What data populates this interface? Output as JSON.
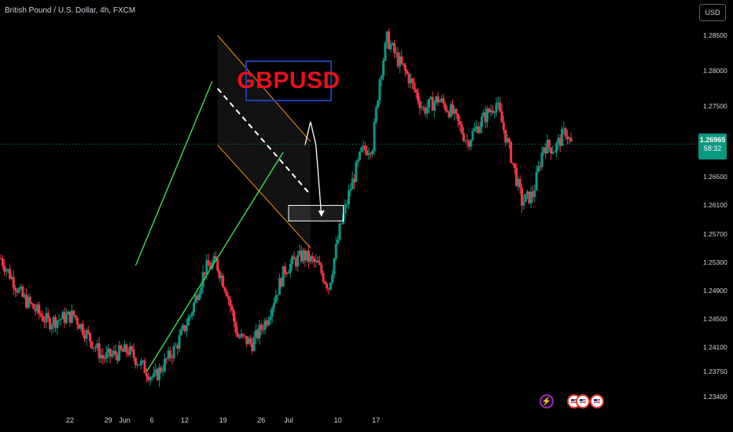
{
  "header": {
    "title": "British Pound / U.S. Dollar, 4h, FXCM",
    "currency": "USD"
  },
  "annotation": {
    "symbol_tag": "GBPUSD"
  },
  "price_badge": {
    "price": "1.26965",
    "countdown": "58:32"
  },
  "colors": {
    "up": "#089981",
    "down": "#f23645",
    "channel_up": "#39d353",
    "channel_down": "#f7931a",
    "tag_border": "#1e3fa8",
    "tag_text": "#e8101b",
    "event_icon": "#9c27b0",
    "flag_ring": "#e53935"
  },
  "events": {
    "icons": [
      "lightning-icon",
      "us-flag-icon",
      "us-flag-icon",
      "us-flag-icon"
    ]
  },
  "chart_data": {
    "type": "candlestick",
    "title": "British Pound / U.S. Dollar, 4h, FXCM",
    "grid": false,
    "yaxis": {
      "ticks": [
        "1.28500",
        "1.28000",
        "1.27500",
        "1.26500",
        "1.26100",
        "1.25700",
        "1.25300",
        "1.24900",
        "1.24500",
        "1.24100",
        "1.23750",
        "1.23400"
      ],
      "range": [
        1.2325,
        1.289
      ]
    },
    "xaxis": {
      "ticks": [
        "22",
        "29",
        "Jun",
        "6",
        "12",
        "19",
        "26",
        "Jul",
        "10",
        "17"
      ]
    },
    "current_price": 1.26965,
    "anchors": [
      {
        "t": 0,
        "p": 1.2535
      },
      {
        "t": 12,
        "p": 1.248
      },
      {
        "t": 26,
        "p": 1.2445
      },
      {
        "t": 40,
        "p": 1.2455
      },
      {
        "t": 56,
        "p": 1.2395
      },
      {
        "t": 70,
        "p": 1.2405
      },
      {
        "t": 84,
        "p": 1.2365
      },
      {
        "t": 96,
        "p": 1.241
      },
      {
        "t": 104,
        "p": 1.2455
      },
      {
        "t": 112,
        "p": 1.252
      },
      {
        "t": 118,
        "p": 1.253
      },
      {
        "t": 124,
        "p": 1.249
      },
      {
        "t": 130,
        "p": 1.2425
      },
      {
        "t": 138,
        "p": 1.2415
      },
      {
        "t": 146,
        "p": 1.245
      },
      {
        "t": 156,
        "p": 1.252
      },
      {
        "t": 166,
        "p": 1.254
      },
      {
        "t": 174,
        "p": 1.2525
      },
      {
        "t": 180,
        "p": 1.2495
      },
      {
        "t": 186,
        "p": 1.2575
      },
      {
        "t": 192,
        "p": 1.2635
      },
      {
        "t": 198,
        "p": 1.2685
      },
      {
        "t": 204,
        "p": 1.2695
      },
      {
        "t": 208,
        "p": 1.279
      },
      {
        "t": 212,
        "p": 1.2845
      },
      {
        "t": 218,
        "p": 1.2815
      },
      {
        "t": 224,
        "p": 1.279
      },
      {
        "t": 232,
        "p": 1.2745
      },
      {
        "t": 240,
        "p": 1.276
      },
      {
        "t": 248,
        "p": 1.274
      },
      {
        "t": 256,
        "p": 1.27
      },
      {
        "t": 264,
        "p": 1.273
      },
      {
        "t": 272,
        "p": 1.2755
      },
      {
        "t": 280,
        "p": 1.268
      },
      {
        "t": 286,
        "p": 1.2615
      },
      {
        "t": 292,
        "p": 1.2625
      },
      {
        "t": 298,
        "p": 1.2695
      },
      {
        "t": 304,
        "p": 1.269
      },
      {
        "t": 310,
        "p": 1.2715
      },
      {
        "t": 313,
        "p": 1.26965
      }
    ],
    "green_channel": {
      "upper": [
        {
          "date": "Jun 3",
          "price": 1.2525
        },
        {
          "date": "Jun 17",
          "price": 1.2785
        }
      ],
      "lower": [
        {
          "date": "Jun 5",
          "price": 1.2375
        },
        {
          "date": "Jun 30",
          "price": 1.2685
        }
      ]
    },
    "orange_channel": {
      "upper": [
        {
          "date": "Jun 18",
          "price": 1.285
        },
        {
          "date": "Jul 5",
          "price": 1.27
        }
      ],
      "lower": [
        {
          "date": "Jun 18",
          "price": 1.2695
        },
        {
          "date": "Jul 5",
          "price": 1.255
        }
      ],
      "midline": [
        {
          "date": "Jun 18",
          "price": 1.2775
        },
        {
          "date": "Jul 5",
          "price": 1.2625
        }
      ]
    },
    "target_zone": {
      "from": "Jul 1",
      "to": "Jul 11",
      "low": 1.2588,
      "high": 1.261
    },
    "projection": [
      {
        "date": "Jul 4",
        "price": 1.2695
      },
      {
        "date": "Jul 5",
        "price": 1.2728
      },
      {
        "date": "Jul 6",
        "price": 1.2695
      },
      {
        "date": "Jul 7",
        "price": 1.2595
      }
    ]
  }
}
